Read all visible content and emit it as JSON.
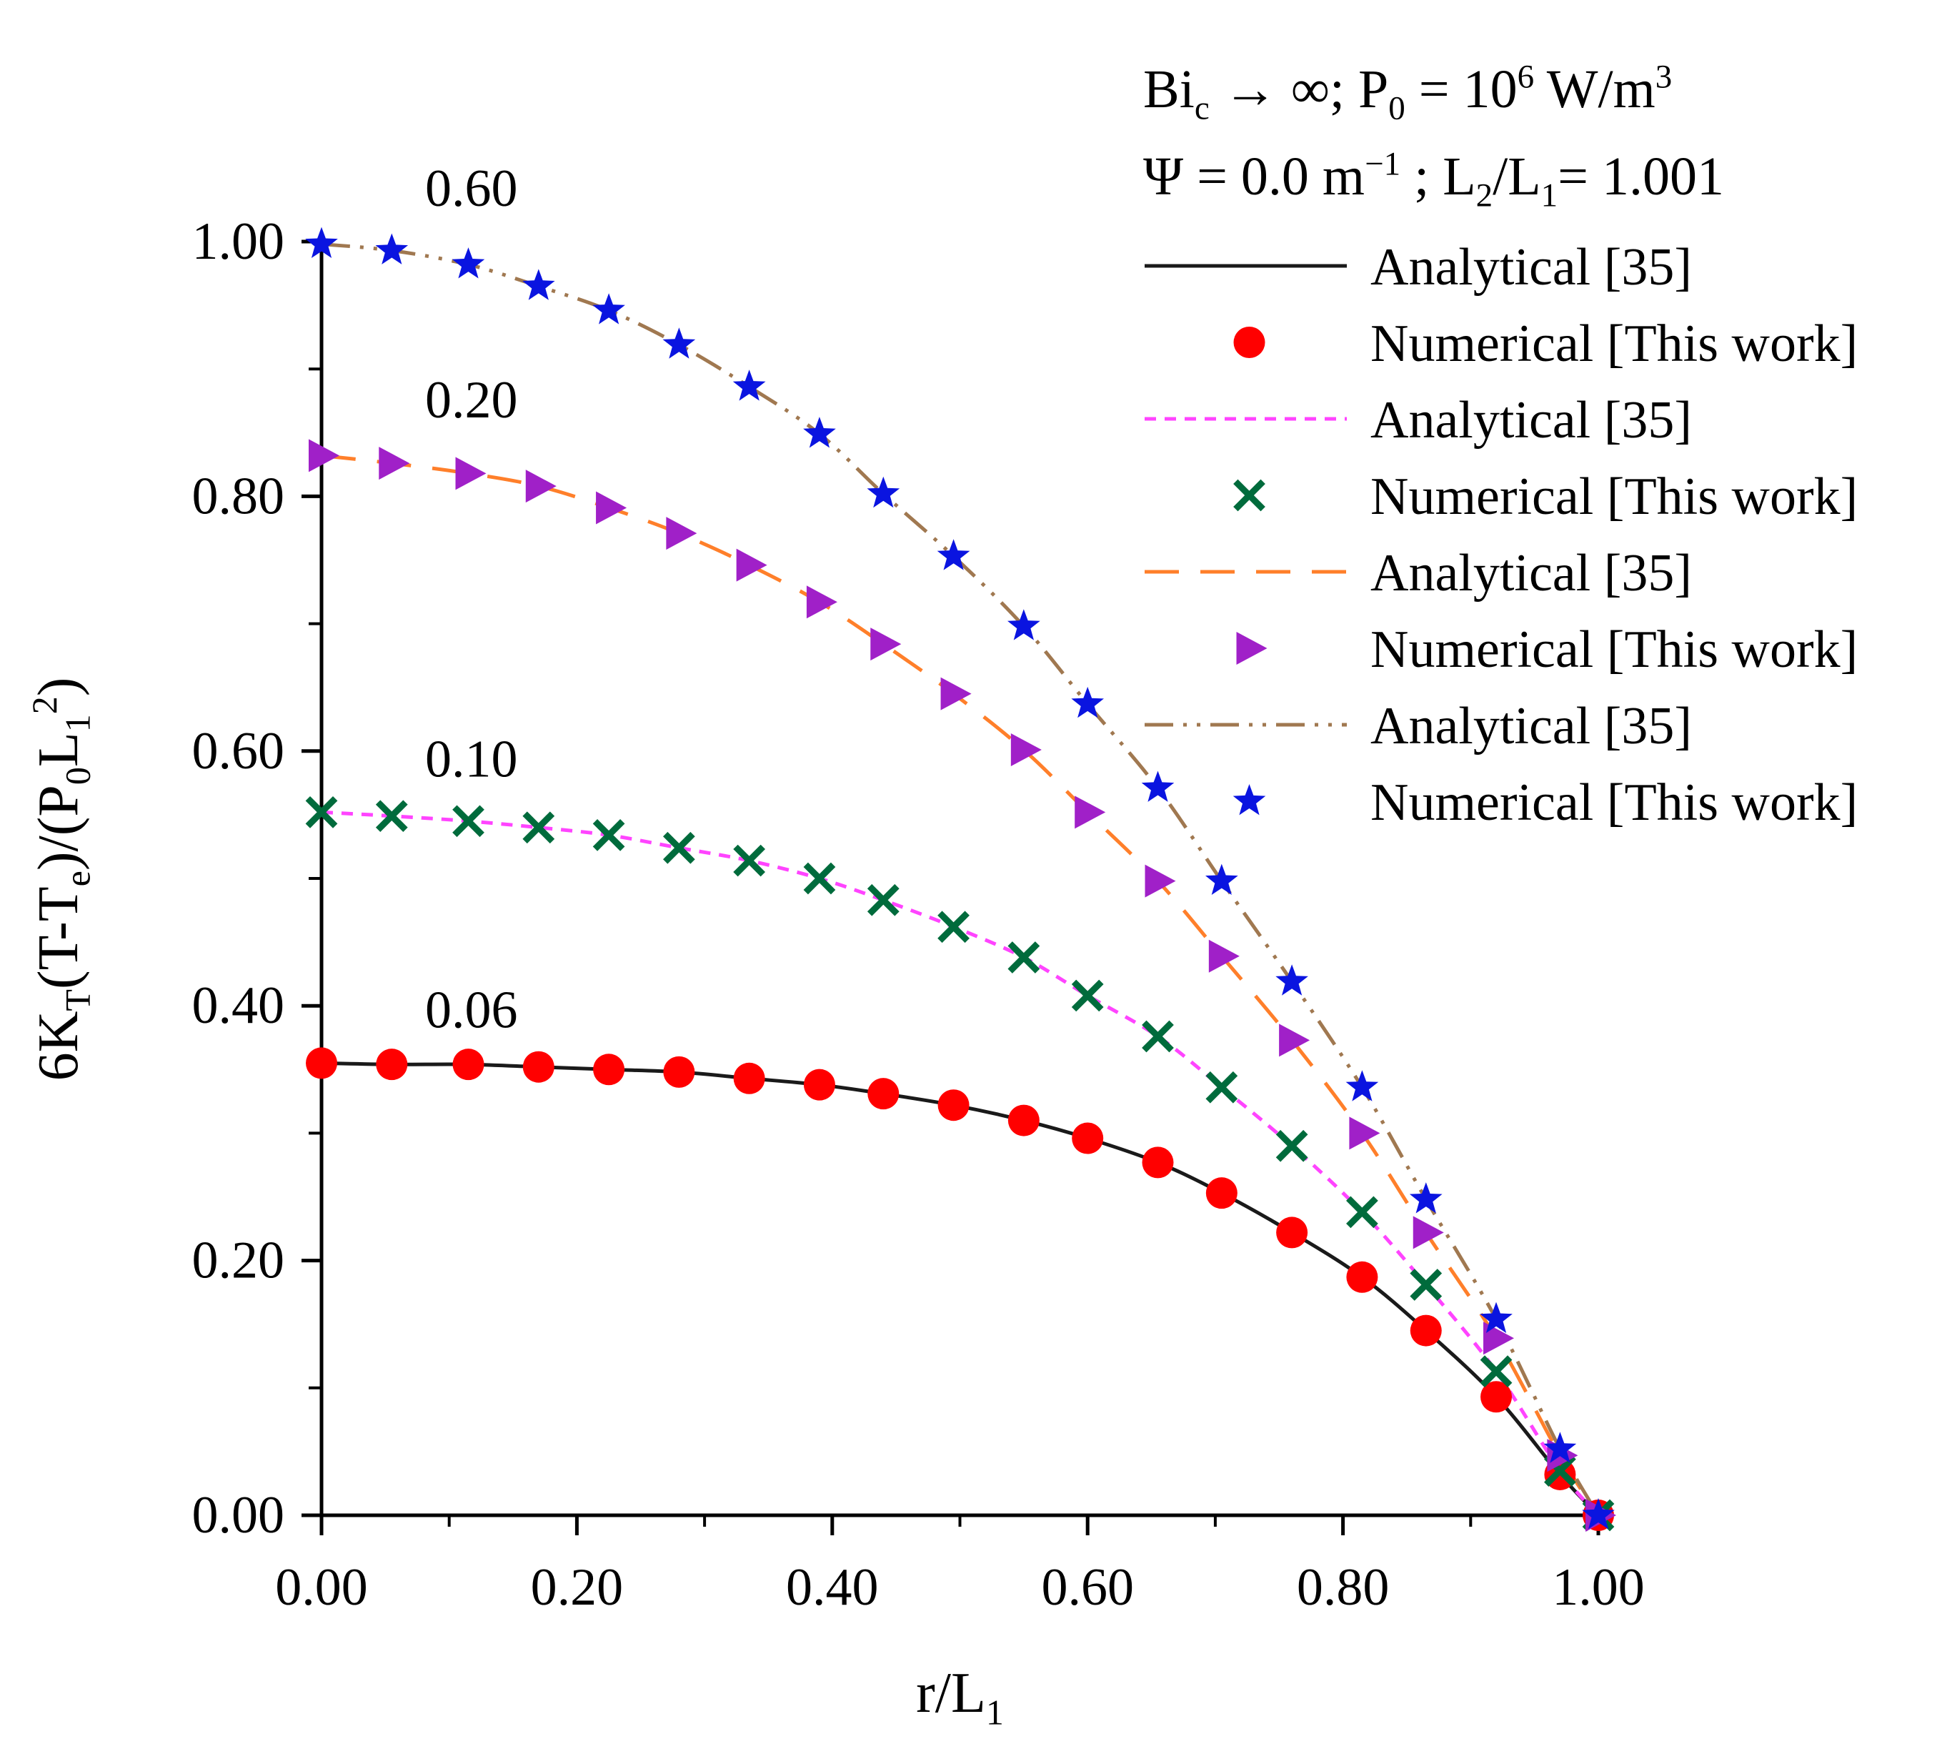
{
  "chart_data": {
    "type": "line",
    "title_lines": [
      {
        "parts": [
          {
            "t": "Bi"
          },
          {
            "t": "c",
            "sub": true
          },
          {
            "t": " → ∞; P"
          },
          {
            "t": "0",
            "sub": true
          },
          {
            "t": " = 10"
          },
          {
            "t": "6",
            "sup": true
          },
          {
            "t": " W/m"
          },
          {
            "t": "3",
            "sup": true
          }
        ]
      },
      {
        "parts": [
          {
            "t": "Ψ = 0.0 m"
          },
          {
            "t": "−1",
            "sup": true
          },
          {
            "t": " ; L"
          },
          {
            "t": "2",
            "sub": true
          },
          {
            "t": "/L"
          },
          {
            "t": "1",
            "sub": true
          },
          {
            "t": "= 1.001"
          }
        ]
      }
    ],
    "xlabel": {
      "parts": [
        {
          "t": "r/L"
        },
        {
          "t": "1",
          "sub": true
        }
      ]
    },
    "ylabel": {
      "parts": [
        {
          "t": "6K"
        },
        {
          "t": "T",
          "sub": true
        },
        {
          "t": "(T-T"
        },
        {
          "t": "e",
          "sub": true
        },
        {
          "t": ")/(P"
        },
        {
          "t": "0",
          "sub": true
        },
        {
          "t": "L"
        },
        {
          "t": "1",
          "sub": true
        },
        {
          "t": "2",
          "sup": true
        },
        {
          "t": ")"
        }
      ]
    },
    "xlim": [
      0,
      1
    ],
    "ylim": [
      0,
      1
    ],
    "xticks": [
      "0.00",
      "0.20",
      "0.40",
      "0.60",
      "0.80",
      "1.00"
    ],
    "yticks": [
      "0.00",
      "0.20",
      "0.40",
      "0.60",
      "0.80",
      "1.00"
    ],
    "curve_labels": [
      "0.06",
      "0.10",
      "0.20",
      "0.60"
    ],
    "legend_position": "top-right",
    "legend_labels": [
      "Analytical [35]",
      "Numerical [This work]",
      "Analytical [35]",
      "Numerical [This work]",
      "Analytical [35]",
      "Numerical [This work]",
      "Analytical [35]",
      "Numerical [This work]"
    ],
    "series": [
      {
        "name": "0.06",
        "line_style": "solid",
        "line_color": "#1a1a1a",
        "marker": "circle",
        "marker_color": "#ff0000",
        "x": [
          0.0,
          0.055,
          0.115,
          0.17,
          0.225,
          0.28,
          0.335,
          0.39,
          0.44,
          0.495,
          0.55,
          0.6,
          0.655,
          0.705,
          0.76,
          0.815,
          0.865,
          0.92,
          0.97,
          1.0
        ],
        "y": [
          0.355,
          0.354,
          0.354,
          0.352,
          0.35,
          0.348,
          0.343,
          0.338,
          0.331,
          0.322,
          0.31,
          0.296,
          0.277,
          0.253,
          0.222,
          0.187,
          0.145,
          0.093,
          0.032,
          0.0
        ]
      },
      {
        "name": "0.10",
        "line_style": "short-dash",
        "line_color": "#ff44ff",
        "marker": "x",
        "marker_color": "#006b3c",
        "x": [
          0.0,
          0.055,
          0.115,
          0.17,
          0.225,
          0.28,
          0.335,
          0.39,
          0.44,
          0.495,
          0.55,
          0.6,
          0.655,
          0.705,
          0.76,
          0.815,
          0.865,
          0.92,
          0.97,
          1.0
        ],
        "y": [
          0.552,
          0.549,
          0.545,
          0.54,
          0.534,
          0.524,
          0.514,
          0.5,
          0.483,
          0.462,
          0.438,
          0.408,
          0.376,
          0.336,
          0.29,
          0.238,
          0.181,
          0.113,
          0.035,
          0.0
        ]
      },
      {
        "name": "0.20",
        "line_style": "long-dash",
        "line_color": "#ff7f2a",
        "marker": "triangle-right",
        "marker_color": "#a020c8",
        "x": [
          0.0,
          0.055,
          0.115,
          0.17,
          0.225,
          0.28,
          0.335,
          0.39,
          0.44,
          0.495,
          0.55,
          0.6,
          0.655,
          0.705,
          0.76,
          0.815,
          0.865,
          0.92,
          0.97,
          1.0
        ],
        "y": [
          0.832,
          0.826,
          0.818,
          0.808,
          0.791,
          0.771,
          0.746,
          0.717,
          0.684,
          0.645,
          0.601,
          0.552,
          0.498,
          0.439,
          0.373,
          0.3,
          0.222,
          0.139,
          0.047,
          0.0
        ]
      },
      {
        "name": "0.60",
        "line_style": "dash-dot-dot",
        "line_color": "#a07850",
        "marker": "star",
        "marker_color": "#0a14e0",
        "x": [
          0.0,
          0.055,
          0.115,
          0.17,
          0.225,
          0.28,
          0.335,
          0.39,
          0.44,
          0.495,
          0.55,
          0.6,
          0.655,
          0.705,
          0.76,
          0.815,
          0.865,
          0.92,
          0.97,
          1.0
        ],
        "y": [
          0.998,
          0.993,
          0.982,
          0.965,
          0.946,
          0.919,
          0.886,
          0.849,
          0.802,
          0.753,
          0.698,
          0.637,
          0.571,
          0.498,
          0.419,
          0.336,
          0.248,
          0.154,
          0.052,
          0.0
        ]
      }
    ]
  }
}
